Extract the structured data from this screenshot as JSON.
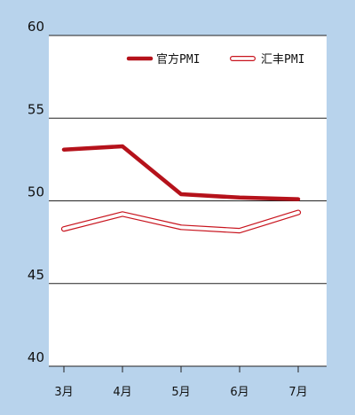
{
  "chart_data": {
    "type": "line",
    "categories": [
      "3月",
      "4月",
      "5月",
      "6月",
      "7月"
    ],
    "ylim": [
      40,
      60
    ],
    "yticks": [
      40,
      45,
      50,
      55,
      60
    ],
    "grid": true,
    "legend_position": "top-right",
    "series": [
      {
        "name": "官方PMI",
        "values": [
          53.1,
          53.3,
          50.4,
          50.2,
          50.1
        ],
        "color": "#b5121b",
        "style": "solid"
      },
      {
        "name": "汇丰PMI",
        "values": [
          48.3,
          49.2,
          48.4,
          48.2,
          49.3
        ],
        "color": "#c8141e",
        "style": "hollow"
      }
    ]
  },
  "colors": {
    "background": "#b8d3ec",
    "plot": "#ffffff",
    "grid": "#222222"
  }
}
